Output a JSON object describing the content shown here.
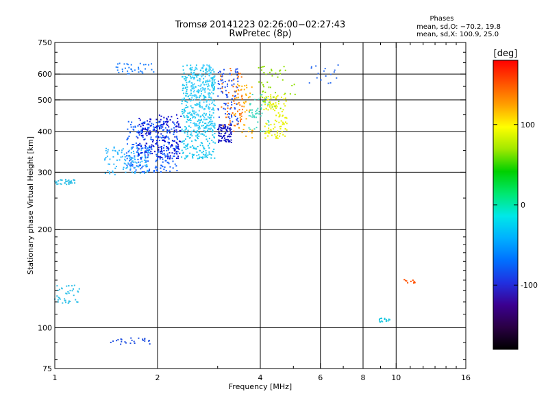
{
  "chart_data": {
    "type": "scatter",
    "title": "Tromsø 20141223 02:26:00−02:27:43",
    "subtitle": "RwPretec (8p)",
    "xlabel": "Frequency [MHz]",
    "ylabel": "Stationary phase Virtual Height [km]",
    "x_scale": "log",
    "y_scale": "log",
    "xlim": [
      1,
      16
    ],
    "ylim": [
      75,
      750
    ],
    "x_ticks": [
      1,
      2,
      4,
      6,
      8,
      10,
      16
    ],
    "x_minor_ticks": [
      3,
      5,
      7,
      9,
      11,
      12,
      13,
      14,
      15
    ],
    "y_ticks": [
      75,
      100,
      200,
      300,
      400,
      500,
      600,
      750
    ],
    "y_minor_ticks": [
      80,
      90,
      110,
      120,
      130,
      140,
      150,
      160,
      170,
      180,
      190,
      250,
      350,
      450,
      550,
      650,
      700
    ],
    "x_grid_lines": [
      2,
      4,
      6,
      8,
      10
    ],
    "y_grid_lines": [
      100,
      200,
      300,
      400,
      500,
      600
    ],
    "stats": {
      "header": "Phases",
      "line_o": "mean, sd,O: −70.2, 19.8",
      "line_x": "mean, sd,X: 100.9, 25.0"
    },
    "colorbar": {
      "label": "[deg]",
      "range": [
        -180,
        180
      ],
      "ticks": [
        100,
        0,
        -100
      ],
      "palette": [
        "#000000",
        "#2a0044",
        "#3b0090",
        "#2030e0",
        "#0070ff",
        "#00b0ff",
        "#00e8e8",
        "#00e870",
        "#00d000",
        "#a0e800",
        "#ffff00",
        "#ffa000",
        "#ff5000",
        "#ff0000"
      ]
    },
    "series": [
      {
        "clusters": [
          {
            "f": [
              1.62,
              2.3
            ],
            "h": [
              300,
              430
            ],
            "color": "#1060ff",
            "n": 260
          },
          {
            "f": [
              1.75,
              2.35
            ],
            "h": [
              330,
              450
            ],
            "color": "#1010d0",
            "n": 180
          },
          {
            "f": [
              1.4,
              1.9
            ],
            "h": [
              295,
              360
            ],
            "color": "#30b8ff",
            "n": 110
          },
          {
            "f": [
              2.35,
              2.95
            ],
            "h": [
              330,
              640
            ],
            "color": "#20c8f0",
            "n": 420
          },
          {
            "f": [
              2.5,
              2.95
            ],
            "h": [
              400,
              640
            ],
            "color": "#50d0ff",
            "n": 160
          },
          {
            "f": [
              3.0,
              3.3
            ],
            "h": [
              370,
              420
            ],
            "color": "#1010c0",
            "n": 80
          },
          {
            "f": [
              3.05,
              3.55
            ],
            "h": [
              400,
              630
            ],
            "color": "#ff7000",
            "n": 70
          },
          {
            "f": [
              3.0,
              3.45
            ],
            "h": [
              420,
              630
            ],
            "color": "#2050f0",
            "n": 80
          },
          {
            "f": [
              3.35,
              3.8
            ],
            "h": [
              380,
              560
            ],
            "color": "#ffb000",
            "n": 45
          },
          {
            "f": [
              3.7,
              4.25
            ],
            "h": [
              400,
              520
            ],
            "color": "#40d8c0",
            "n": 50
          },
          {
            "f": [
              4.1,
              4.8
            ],
            "h": [
              380,
              520
            ],
            "color": "#e8f000",
            "n": 110
          },
          {
            "f": [
              3.9,
              5.1
            ],
            "h": [
              470,
              640
            ],
            "color": "#90e000",
            "n": 45
          },
          {
            "f": [
              1.5,
              1.95
            ],
            "h": [
              600,
              650
            ],
            "color": "#2080ff",
            "n": 35
          },
          {
            "f": [
              1.0,
              1.15
            ],
            "h": [
              275,
              285
            ],
            "color": "#30c0e8",
            "n": 35
          },
          {
            "f": [
              1.0,
              1.18
            ],
            "h": [
              118,
              135
            ],
            "color": "#30c0e8",
            "n": 40
          },
          {
            "f": [
              1.45,
              1.9
            ],
            "h": [
              89,
              93
            ],
            "color": "#2050e0",
            "n": 24
          },
          {
            "f": [
              8.9,
              9.6
            ],
            "h": [
              104,
              107
            ],
            "color": "#20c8e0",
            "n": 18
          },
          {
            "f": [
              10.3,
              11.4
            ],
            "h": [
              137,
              141
            ],
            "color": "#ff5000",
            "n": 10
          },
          {
            "f": [
              5.5,
              6.9
            ],
            "h": [
              560,
              640
            ],
            "color": "#3070f0",
            "n": 18
          }
        ]
      }
    ]
  }
}
